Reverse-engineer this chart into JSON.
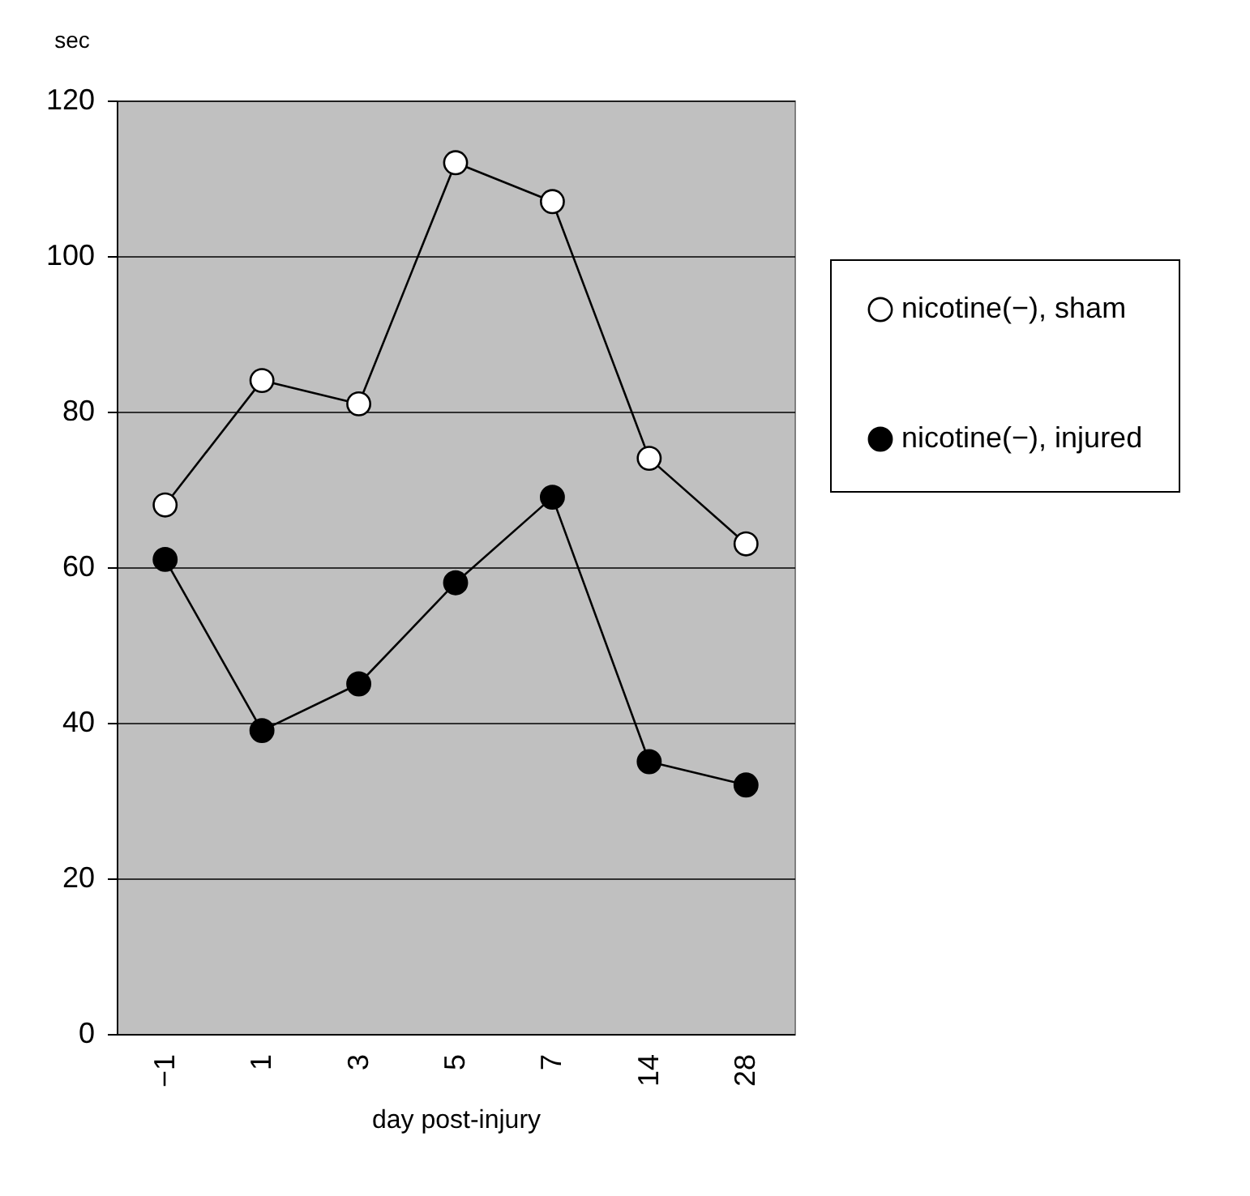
{
  "chart_data": {
    "type": "line",
    "ylabel": "sec",
    "xlabel": "day post-injury",
    "categories": [
      "−1",
      "1",
      "3",
      "5",
      "7",
      "14",
      "28"
    ],
    "series": [
      {
        "name": "nicotine(−), sham",
        "color": "#ffffff",
        "values": [
          68,
          84,
          81,
          112,
          107,
          74,
          63
        ]
      },
      {
        "name": "nicotine(−), injured",
        "color": "#000000",
        "values": [
          61,
          39,
          45,
          58,
          69,
          35,
          32
        ]
      }
    ],
    "ylim": [
      0,
      120
    ],
    "yticks": [
      0,
      20,
      40,
      60,
      80,
      100,
      120
    ],
    "grid": "y",
    "legend": "right",
    "marker": "circle",
    "line_style": "solid"
  }
}
